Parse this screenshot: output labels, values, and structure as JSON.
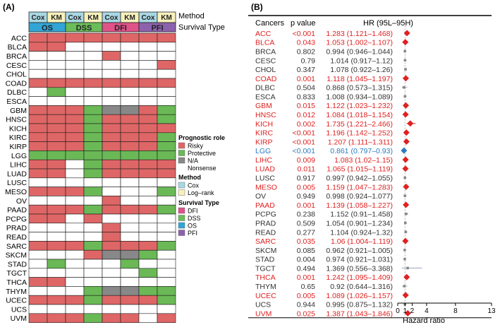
{
  "panel_a": {
    "label": "(A)",
    "method_header": "Method",
    "survival_header": "Survival Type",
    "method_labels": [
      "Cox",
      "KM",
      "Cox",
      "KM",
      "Cox",
      "KM",
      "Cox",
      "KM"
    ],
    "survival_labels": [
      "OS",
      "DSS",
      "DFI",
      "PFI"
    ],
    "legend": {
      "prognostic_title": "Prognostic role",
      "prognostic_items": [
        "Risky",
        "Protective",
        "N/A",
        "Nonsense"
      ],
      "method_title": "Method",
      "method_items": [
        "Cox",
        "Log–rank"
      ],
      "survival_title": "Survival Type",
      "survival_items": [
        "DFI",
        "DSS",
        "OS",
        "PFI"
      ]
    },
    "colors": {
      "risky": "#df6666",
      "protective": "#6ab956",
      "na": "#888888",
      "nonsense": "#ffffff",
      "cox": "#a9d8e4",
      "km": "#f7f1bb",
      "os": "#32a5d6",
      "dss": "#6bbd5a",
      "dfi": "#e0528a",
      "pfi": "#8c62ad"
    },
    "cancers": [
      "ACC",
      "BLCA",
      "BRCA",
      "CESC",
      "CHOL",
      "COAD",
      "DLBC",
      "ESCA",
      "GBM",
      "HNSC",
      "KICH",
      "KIRC",
      "KIRP",
      "LGG",
      "LIHC",
      "LUAD",
      "LUSC",
      "MESO",
      "OV",
      "PAAD",
      "PCPG",
      "PRAD",
      "READ",
      "SARC",
      "SKCM",
      "STAD",
      "TGCT",
      "THCA",
      "THYM",
      "UCEC",
      "UCS",
      "UVM"
    ],
    "matrix": [
      "RRRRRRRR",
      "RR000000",
      "0000R000",
      "0000000R",
      "00000000",
      "RRRRRRRR",
      "0P000000",
      "00000000",
      "RRRPNNRP",
      "RRRPRRRP",
      "RRRPRRRR",
      "RRRPRRRP",
      "RRRPRRRP",
      "PPPPPPPP",
      "RR0PRRRR",
      "RR0PRRRR",
      "00000000",
      "RRRP000P",
      "0000R000",
      "RRRPRRRP",
      "RR0R0000",
      "0000R000",
      "0000R000",
      "RRRPRRRP",
      "000RNNP0",
      "0P000P00",
      "000000P0",
      "RR000000",
      "000PNNPP",
      "RRRPRRRP",
      "00000000",
      "RRRPRR0R"
    ]
  },
  "panel_b": {
    "label": "(B)",
    "header_cancers": "Cancers",
    "header_pvalue": "p value",
    "header_hr": "HR (95L–95H)",
    "xlabel": "Hazard ratio",
    "xticks": [
      "0",
      "1",
      "2",
      "4",
      "8",
      "13"
    ],
    "colors": {
      "risky": "#e02020",
      "protective": "#2b7bc0",
      "neutral": "#333333",
      "marker_neutral": "#888888"
    },
    "rows": [
      {
        "cancer": "ACC",
        "p": "<0.001",
        "hr_text": "1.283 (1.121–1.468)",
        "type": "risky"
      },
      {
        "cancer": "BLCA",
        "p": "0.043",
        "hr_text": "1.053 (1.002–1.107)",
        "type": "risky"
      },
      {
        "cancer": "BRCA",
        "p": "0.802",
        "hr_text": "0.994 (0.946–1.044)",
        "type": "neutral"
      },
      {
        "cancer": "CESC",
        "p": "0.79",
        "hr_text": "1.014 (0.917–1.12)",
        "type": "neutral"
      },
      {
        "cancer": "CHOL",
        "p": "0.347",
        "hr_text": "1.078 (0.922–1.26)",
        "type": "neutral"
      },
      {
        "cancer": "COAD",
        "p": "0.001",
        "hr_text": "1.118 (1.045–1.197)",
        "type": "risky"
      },
      {
        "cancer": "DLBC",
        "p": "0.504",
        "hr_text": "0.868 (0.573–1.315)",
        "type": "neutral"
      },
      {
        "cancer": "ESCA",
        "p": "0.833",
        "hr_text": "1.008 (0.934–1.089)",
        "type": "neutral"
      },
      {
        "cancer": "GBM",
        "p": "0.015",
        "hr_text": "1.122 (1.023–1.232)",
        "type": "risky"
      },
      {
        "cancer": "HNSC",
        "p": "0.012",
        "hr_text": "1.084 (1.018–1.154)",
        "type": "risky"
      },
      {
        "cancer": "KICH",
        "p": "0.002",
        "hr_text": "1.735 (1.221–2.466)",
        "type": "risky"
      },
      {
        "cancer": "KIRC",
        "p": "<0.001",
        "hr_text": "1.196 (1.142–1.252)",
        "type": "risky"
      },
      {
        "cancer": "KIRP",
        "p": "<0.001",
        "hr_text": "1.207 (1.111–1.311)",
        "type": "risky"
      },
      {
        "cancer": "LGG",
        "p": "<0.001",
        "hr_text": "0.861 (0.797–0.93)",
        "type": "protective"
      },
      {
        "cancer": "LIHC",
        "p": "0.009",
        "hr_text": "1.083 (1.02–1.15)",
        "type": "risky"
      },
      {
        "cancer": "LUAD",
        "p": "0.011",
        "hr_text": "1.065 (1.015–1.119)",
        "type": "risky"
      },
      {
        "cancer": "LUSC",
        "p": "0.917",
        "hr_text": "0.997 (0.942–1.055)",
        "type": "neutral"
      },
      {
        "cancer": "MESO",
        "p": "0.005",
        "hr_text": "1.159 (1.047–1.283)",
        "type": "risky"
      },
      {
        "cancer": "OV",
        "p": "0.949",
        "hr_text": "0.998 (0.924–1.077)",
        "type": "neutral"
      },
      {
        "cancer": "PAAD",
        "p": "0.001",
        "hr_text": "1.139 (1.058–1.227)",
        "type": "risky"
      },
      {
        "cancer": "PCPG",
        "p": "0.238",
        "hr_text": "1.152 (0.91–1.458)",
        "type": "neutral"
      },
      {
        "cancer": "PRAD",
        "p": "0.509",
        "hr_text": "1.054 (0.901–1.234)",
        "type": "neutral"
      },
      {
        "cancer": "READ",
        "p": "0.277",
        "hr_text": "1.104 (0.924–1.32)",
        "type": "neutral"
      },
      {
        "cancer": "SARC",
        "p": "0.035",
        "hr_text": "1.06 (1.004–1.119)",
        "type": "risky"
      },
      {
        "cancer": "SKCM",
        "p": "0.085",
        "hr_text": "0.962 (0.921–1.005)",
        "type": "neutral"
      },
      {
        "cancer": "STAD",
        "p": "0.004",
        "hr_text": "0.974 (0.921–1.031)",
        "type": "neutral"
      },
      {
        "cancer": "TGCT",
        "p": "0.494",
        "hr_text": "1.369 (0.556–3.368)",
        "type": "neutral"
      },
      {
        "cancer": "THCA",
        "p": "0.001",
        "hr_text": "1.242 (1.095–1.409)",
        "type": "risky"
      },
      {
        "cancer": "THYM",
        "p": "0.65",
        "hr_text": "0.92 (0.644–1.316)",
        "type": "neutral"
      },
      {
        "cancer": "UCEC",
        "p": "0.005",
        "hr_text": "1.089 (1.026–1.157)",
        "type": "risky"
      },
      {
        "cancer": "UCS",
        "p": "0.944",
        "hr_text": "0.995 (0.875–1.132)",
        "type": "neutral"
      },
      {
        "cancer": "UVM",
        "p": "0.025",
        "hr_text": "1.387 (1.043–1.846)",
        "type": "risky"
      }
    ]
  },
  "chart_data": [
    {
      "type": "heatmap",
      "title": "",
      "rows": [
        "ACC",
        "BLCA",
        "BRCA",
        "CESC",
        "CHOL",
        "COAD",
        "DLBC",
        "ESCA",
        "GBM",
        "HNSC",
        "KICH",
        "KIRC",
        "KIRP",
        "LGG",
        "LIHC",
        "LUAD",
        "LUSC",
        "MESO",
        "OV",
        "PAAD",
        "PCPG",
        "PRAD",
        "READ",
        "SARC",
        "SKCM",
        "STAD",
        "TGCT",
        "THCA",
        "THYM",
        "UCEC",
        "UCS",
        "UVM"
      ],
      "columns": [
        "OS Cox",
        "OS KM",
        "DSS Cox",
        "DSS KM",
        "DFI Cox",
        "DFI KM",
        "PFI Cox",
        "PFI KM"
      ],
      "encoding": {
        "R": "Risky",
        "P": "Protective",
        "N": "N/A",
        "0": "Nonsense"
      }
    },
    {
      "type": "scatter",
      "title": "",
      "xlabel": "Hazard ratio",
      "xlim": [
        0,
        13
      ],
      "categories": [
        "ACC",
        "BLCA",
        "BRCA",
        "CESC",
        "CHOL",
        "COAD",
        "DLBC",
        "ESCA",
        "GBM",
        "HNSC",
        "KICH",
        "KIRC",
        "KIRP",
        "LGG",
        "LIHC",
        "LUAD",
        "LUSC",
        "MESO",
        "OV",
        "PAAD",
        "PCPG",
        "PRAD",
        "READ",
        "SARC",
        "SKCM",
        "STAD",
        "TGCT",
        "THCA",
        "THYM",
        "UCEC",
        "UCS",
        "UVM"
      ],
      "hr": [
        1.283,
        1.053,
        0.994,
        1.014,
        1.078,
        1.118,
        0.868,
        1.008,
        1.122,
        1.084,
        1.735,
        1.196,
        1.207,
        0.861,
        1.083,
        1.065,
        0.997,
        1.159,
        0.998,
        1.139,
        1.152,
        1.054,
        1.104,
        1.06,
        0.962,
        0.974,
        1.369,
        1.242,
        0.92,
        1.089,
        0.995,
        1.387
      ],
      "lower": [
        1.121,
        1.002,
        0.946,
        0.917,
        0.922,
        1.045,
        0.573,
        0.934,
        1.023,
        1.018,
        1.221,
        1.142,
        1.111,
        0.797,
        1.02,
        1.015,
        0.942,
        1.047,
        0.924,
        1.058,
        0.91,
        0.901,
        0.924,
        1.004,
        0.921,
        0.921,
        0.556,
        1.095,
        0.644,
        1.026,
        0.875,
        1.043
      ],
      "upper": [
        1.468,
        1.107,
        1.044,
        1.12,
        1.26,
        1.197,
        1.315,
        1.089,
        1.232,
        1.154,
        2.466,
        1.252,
        1.311,
        0.93,
        1.15,
        1.119,
        1.055,
        1.283,
        1.077,
        1.227,
        1.458,
        1.234,
        1.32,
        1.119,
        1.005,
        1.031,
        3.368,
        1.409,
        1.316,
        1.157,
        1.132,
        1.846
      ]
    }
  ]
}
